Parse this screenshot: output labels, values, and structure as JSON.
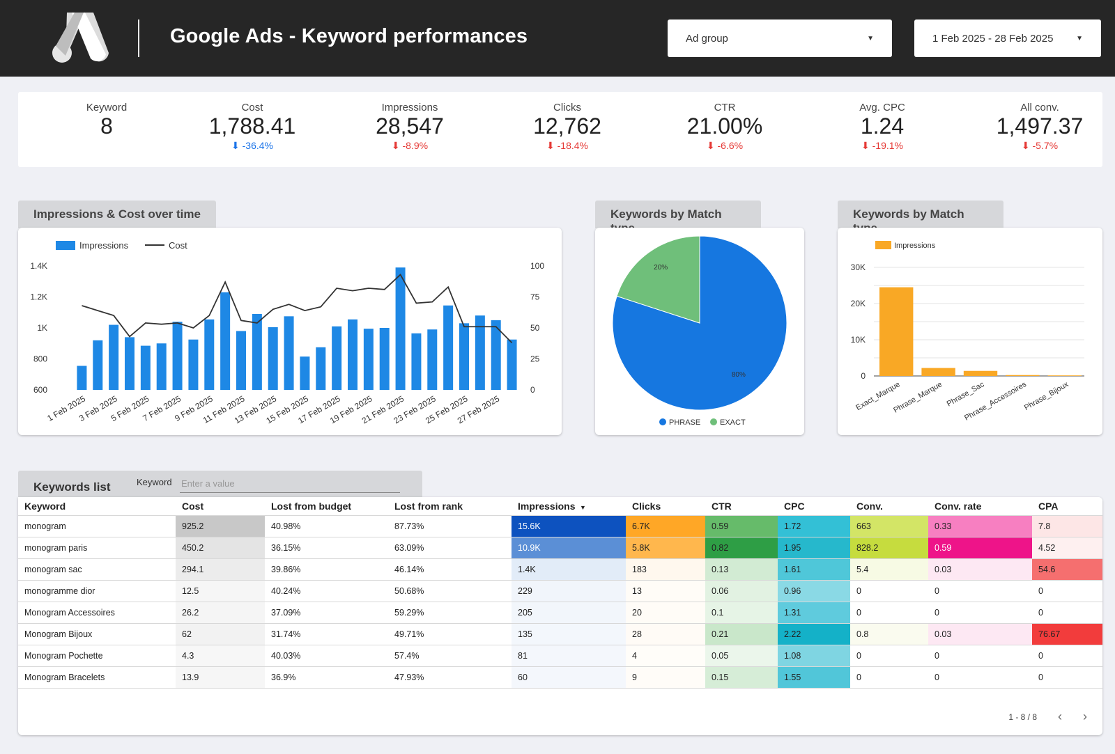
{
  "header": {
    "title": "Google Ads - Keyword performances",
    "adgroup_label": "Ad group",
    "date_range": "1 Feb 2025 - 28 Feb 2025"
  },
  "kpis": [
    {
      "label": "Keyword",
      "value": "8",
      "delta": ""
    },
    {
      "label": "Cost",
      "value": "1,788.41",
      "delta": "-36.4%",
      "delta_color": "blue"
    },
    {
      "label": "Impressions",
      "value": "28,547",
      "delta": "-8.9%",
      "delta_color": "red"
    },
    {
      "label": "Clicks",
      "value": "12,762",
      "delta": "-18.4%",
      "delta_color": "red"
    },
    {
      "label": "CTR",
      "value": "21.00%",
      "delta": "-6.6%",
      "delta_color": "red"
    },
    {
      "label": "Avg. CPC",
      "value": "1.24",
      "delta": "-19.1%",
      "delta_color": "red"
    },
    {
      "label": "All conv.",
      "value": "1,497.37",
      "delta": "-5.7%",
      "delta_color": "red"
    }
  ],
  "charts": {
    "timeseries_title": "Impressions & Cost over time",
    "pie_title": "Keywords by Match type",
    "bar_title": "Keywords by Match type"
  },
  "chart_data": [
    {
      "type": "bar",
      "title": "Impressions & Cost over time",
      "categories": [
        "1 Feb 2025",
        "2 Feb 2025",
        "3 Feb 2025",
        "4 Feb 2025",
        "5 Feb 2025",
        "6 Feb 2025",
        "7 Feb 2025",
        "8 Feb 2025",
        "9 Feb 2025",
        "10 Feb 2025",
        "11 Feb 2025",
        "12 Feb 2025",
        "13 Feb 2025",
        "14 Feb 2025",
        "15 Feb 2025",
        "16 Feb 2025",
        "17 Feb 2025",
        "18 Feb 2025",
        "19 Feb 2025",
        "20 Feb 2025",
        "21 Feb 2025",
        "22 Feb 2025",
        "23 Feb 2025",
        "24 Feb 2025",
        "25 Feb 2025",
        "26 Feb 2025",
        "27 Feb 2025",
        "28 Feb 2025"
      ],
      "tick_labels": [
        "1 Feb 2025",
        "3 Feb 2025",
        "5 Feb 2025",
        "7 Feb 2025",
        "9 Feb 2025",
        "11 Feb 2025",
        "13 Feb 2025",
        "15 Feb 2025",
        "17 Feb 2025",
        "19 Feb 2025",
        "21 Feb 2025",
        "23 Feb 2025",
        "25 Feb 2025",
        "27 Feb 2025"
      ],
      "series": [
        {
          "name": "Impressions",
          "type": "bar",
          "axis": "left",
          "color": "#1e88e5",
          "values": [
            755,
            920,
            1020,
            940,
            885,
            900,
            1040,
            925,
            1055,
            1230,
            980,
            1090,
            1005,
            1075,
            815,
            875,
            1010,
            1055,
            995,
            1000,
            1390,
            965,
            990,
            1145,
            1030,
            1080,
            1050,
            925
          ]
        },
        {
          "name": "Cost",
          "type": "line",
          "axis": "right",
          "color": "#333333",
          "values": [
            68,
            64,
            60,
            43,
            54,
            53,
            54,
            50,
            60,
            87,
            56,
            54,
            65,
            69,
            64,
            67,
            82,
            80,
            82,
            81,
            93,
            70,
            71,
            83,
            51,
            51,
            51,
            38
          ]
        }
      ],
      "ylim": [
        600,
        1400
      ],
      "y_ticks": [
        "600",
        "800",
        "1K",
        "1.2K",
        "1.4K"
      ],
      "y2lim": [
        0,
        100
      ],
      "y2_ticks": [
        "0",
        "25",
        "50",
        "75",
        "100"
      ],
      "legend": "top-left"
    },
    {
      "type": "pie",
      "title": "Keywords by Match type",
      "labels": [
        "PHRASE",
        "EXACT"
      ],
      "values": [
        80,
        20
      ],
      "value_labels": [
        "80%",
        "20%"
      ],
      "colors": [
        "#1677e0",
        "#6fbf7a"
      ],
      "legend": "bottom"
    },
    {
      "type": "bar",
      "title": "Keywords by Match type",
      "categories": [
        "Exact_Marque",
        "Phrase_Marque",
        "Phrase_Sac",
        "Phrase_Accessoires",
        "Phrase_Bijoux"
      ],
      "series": [
        {
          "name": "Impressions",
          "color": "#f9a825",
          "values": [
            24500,
            2200,
            1400,
            250,
            150
          ]
        }
      ],
      "ylim": [
        0,
        30000
      ],
      "y_ticks": [
        "0",
        "10K",
        "20K",
        "30K"
      ],
      "legend": "top-left"
    }
  ],
  "table": {
    "title": "Keywords list",
    "filter_label": "Keyword",
    "filter_placeholder": "Enter a value",
    "columns": [
      "Keyword",
      "Cost",
      "Lost from budget",
      "Lost from rank",
      "Impressions",
      "Clicks",
      "CTR",
      "CPC",
      "Conv.",
      "Conv. rate",
      "CPA"
    ],
    "sort_indicator": "▼",
    "rows": [
      [
        "monogram",
        "925.2",
        "40.98%",
        "87.73%",
        "15.6K",
        "6.7K",
        "0.59",
        "1.72",
        "663",
        "0.33",
        "7.8"
      ],
      [
        "monogram paris",
        "450.2",
        "36.15%",
        "63.09%",
        "10.9K",
        "5.8K",
        "0.82",
        "1.95",
        "828.2",
        "0.59",
        "4.52"
      ],
      [
        "monogram sac",
        "294.1",
        "39.86%",
        "46.14%",
        "1.4K",
        "183",
        "0.13",
        "1.61",
        "5.4",
        "0.03",
        "54.6"
      ],
      [
        "monogramme dior",
        "12.5",
        "40.24%",
        "50.68%",
        "229",
        "13",
        "0.06",
        "0.96",
        "0",
        "0",
        "0"
      ],
      [
        "Monogram Accessoires",
        "26.2",
        "37.09%",
        "59.29%",
        "205",
        "20",
        "0.1",
        "1.31",
        "0",
        "0",
        "0"
      ],
      [
        "Monogram Bijoux",
        "62",
        "31.74%",
        "49.71%",
        "135",
        "28",
        "0.21",
        "2.22",
        "0.8",
        "0.03",
        "76.67"
      ],
      [
        "Monogram Pochette",
        "4.3",
        "40.03%",
        "57.4%",
        "81",
        "4",
        "0.05",
        "1.08",
        "0",
        "0",
        "0"
      ],
      [
        "Monogram Bracelets",
        "13.9",
        "36.9%",
        "47.93%",
        "60",
        "9",
        "0.15",
        "1.55",
        "0",
        "0",
        "0"
      ]
    ],
    "cell_colors": [
      [
        "",
        "#c8c8c8",
        "",
        "",
        "#0d52bf",
        "#ffa726",
        "#66bb6a",
        "#33c0d6",
        "#d3e566",
        "#f77fc1",
        "#fde6e6"
      ],
      [
        "",
        "#e4e4e4",
        "",
        "",
        "#5b8fd6",
        "#ffb74d",
        "#2e9e45",
        "#26b8cc",
        "#c6dc3e",
        "#ee1489",
        "#fef0f0"
      ],
      [
        "",
        "#ececec",
        "",
        "",
        "#e2ecf8",
        "#fff8ee",
        "#d2ebd3",
        "#4fc7d9",
        "#f7fae4",
        "#fde8f3",
        "#f56f6f"
      ],
      [
        "",
        "#f6f6f6",
        "",
        "",
        "#f1f5fb",
        "#fffcf7",
        "#e2f2e2",
        "#8ad9e5",
        "",
        "",
        ""
      ],
      [
        "",
        "#f5f5f5",
        "",
        "",
        "#f2f6fb",
        "#fffcf7",
        "#e6f4e6",
        "#5fcbdd",
        "",
        "",
        ""
      ],
      [
        "",
        "#f2f2f2",
        "",
        "",
        "#f3f7fc",
        "#fffbf6",
        "#c9e7ca",
        "#14b1c8",
        "#fafbef",
        "#fde8f3",
        "#f23c3c"
      ],
      [
        "",
        "#f7f7f7",
        "",
        "",
        "#f4f7fc",
        "#fffdf9",
        "#ebf6eb",
        "#7fd5e2",
        "",
        "",
        ""
      ],
      [
        "",
        "#f6f6f6",
        "",
        "",
        "#f4f7fc",
        "#fffcf8",
        "#d6edd7",
        "#51c6d9",
        "",
        "",
        ""
      ]
    ],
    "light_text_cells": [
      [
        0,
        4
      ],
      [
        1,
        4
      ],
      [
        1,
        9
      ]
    ],
    "pagination": "1 - 8 / 8"
  }
}
